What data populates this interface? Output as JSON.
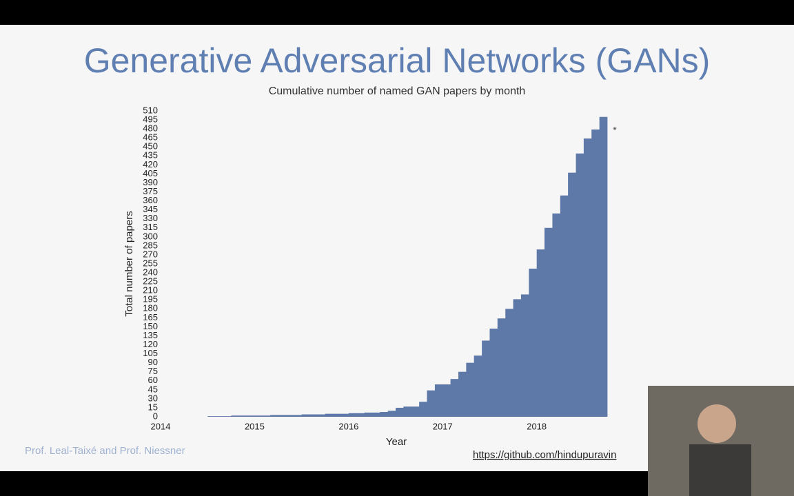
{
  "slide": {
    "title": "Generative Adversarial Networks (GANs)",
    "footer": "Prof. Leal-Taixé and Prof. Niessner",
    "link": "https://github.com/hindupuravin"
  },
  "chart_data": {
    "type": "bar",
    "title": "Cumulative number of named GAN papers by month",
    "x_label": "Year",
    "y_label": "Total number of papers",
    "annotation": "*",
    "color": "#5e78a8",
    "x": [
      2014.5,
      2014.583,
      2014.667,
      2014.75,
      2014.833,
      2014.917,
      2015,
      2015.083,
      2015.167,
      2015.25,
      2015.333,
      2015.417,
      2015.5,
      2015.583,
      2015.667,
      2015.75,
      2015.833,
      2015.917,
      2016,
      2016.083,
      2016.167,
      2016.25,
      2016.333,
      2016.417,
      2016.5,
      2016.583,
      2016.667,
      2016.75,
      2016.833,
      2016.917,
      2017,
      2017.083,
      2017.167,
      2017.25,
      2017.333,
      2017.417,
      2017.5,
      2017.583,
      2017.667,
      2017.75,
      2017.833,
      2017.917,
      2018,
      2018.083,
      2018.167,
      2018.25,
      2018.333,
      2018.417,
      2018.5,
      2018.583,
      2018.667
    ],
    "values": [
      1,
      1,
      1,
      2,
      2,
      2,
      2,
      2,
      3,
      3,
      3,
      3,
      4,
      4,
      4,
      5,
      5,
      5,
      6,
      6,
      7,
      7,
      8,
      10,
      15,
      17,
      17,
      25,
      44,
      54,
      54,
      63,
      75,
      90,
      102,
      127,
      147,
      164,
      180,
      196,
      204,
      247,
      279,
      315,
      339,
      369,
      407,
      439,
      464,
      479,
      500
    ],
    "xlim": [
      2014,
      2018.75
    ],
    "xticks": [
      2014,
      2015,
      2016,
      2017,
      2018
    ],
    "ylim": [
      0,
      510
    ],
    "yticks": [
      0,
      15,
      30,
      45,
      60,
      75,
      90,
      105,
      120,
      135,
      150,
      165,
      180,
      195,
      210,
      225,
      240,
      255,
      270,
      285,
      300,
      315,
      330,
      345,
      360,
      375,
      390,
      405,
      420,
      435,
      450,
      465,
      480,
      495,
      510
    ]
  }
}
